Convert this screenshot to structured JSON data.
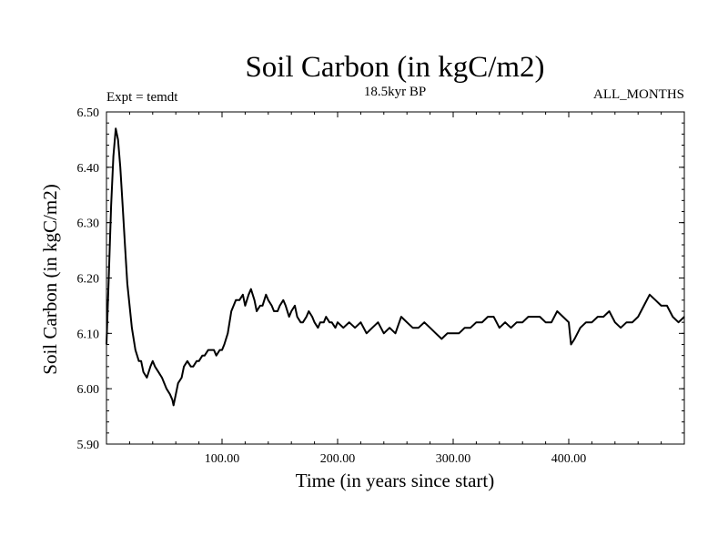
{
  "chart_data": {
    "type": "line",
    "title": "Soil Carbon (in kgC/m2)",
    "subtitle": "18.5kyr BP",
    "annotation_left": "Expt = temdt",
    "annotation_right": "ALL_MONTHS",
    "xlabel": "Time (in years since start)",
    "ylabel": "Soil Carbon (in kgC/m2)",
    "xlim": [
      0,
      500
    ],
    "ylim": [
      5.9,
      6.5
    ],
    "x_ticks": [
      100,
      200,
      300,
      400
    ],
    "x_tick_labels": [
      "100.00",
      "200.00",
      "300.00",
      "400.00"
    ],
    "y_ticks": [
      5.9,
      6.0,
      6.1,
      6.2,
      6.3,
      6.4,
      6.5
    ],
    "y_tick_labels": [
      "5.90",
      "6.00",
      "6.10",
      "6.20",
      "6.30",
      "6.40",
      "6.50"
    ],
    "grid": false,
    "series": [
      {
        "name": "Soil Carbon",
        "x": [
          0,
          2,
          4,
          6,
          8,
          10,
          12,
          14,
          16,
          18,
          20,
          22,
          25,
          28,
          30,
          32,
          35,
          38,
          40,
          42,
          45,
          48,
          50,
          52,
          55,
          57,
          58,
          60,
          62,
          65,
          67,
          70,
          73,
          75,
          78,
          80,
          83,
          85,
          88,
          90,
          93,
          95,
          98,
          100,
          102,
          105,
          108,
          110,
          112,
          115,
          118,
          120,
          123,
          125,
          128,
          130,
          133,
          135,
          138,
          140,
          143,
          145,
          148,
          150,
          153,
          155,
          158,
          160,
          163,
          165,
          168,
          170,
          173,
          175,
          178,
          180,
          183,
          185,
          188,
          190,
          193,
          195,
          198,
          200,
          205,
          210,
          215,
          220,
          225,
          230,
          235,
          240,
          245,
          250,
          255,
          260,
          265,
          270,
          275,
          280,
          285,
          290,
          295,
          300,
          305,
          310,
          315,
          320,
          325,
          330,
          335,
          340,
          345,
          350,
          355,
          360,
          365,
          370,
          375,
          380,
          385,
          390,
          395,
          400,
          402,
          405,
          410,
          415,
          420,
          425,
          430,
          435,
          440,
          445,
          450,
          455,
          460,
          465,
          470,
          475,
          480,
          485,
          490,
          495,
          500
        ],
        "values": [
          6.08,
          6.2,
          6.33,
          6.42,
          6.47,
          6.45,
          6.4,
          6.33,
          6.26,
          6.19,
          6.15,
          6.11,
          6.07,
          6.05,
          6.05,
          6.03,
          6.02,
          6.04,
          6.05,
          6.04,
          6.03,
          6.02,
          6.01,
          6.0,
          5.99,
          5.98,
          5.97,
          5.99,
          6.01,
          6.02,
          6.04,
          6.05,
          6.04,
          6.04,
          6.05,
          6.05,
          6.06,
          6.06,
          6.07,
          6.07,
          6.07,
          6.06,
          6.07,
          6.07,
          6.08,
          6.1,
          6.14,
          6.15,
          6.16,
          6.16,
          6.17,
          6.15,
          6.17,
          6.18,
          6.16,
          6.14,
          6.15,
          6.15,
          6.17,
          6.16,
          6.15,
          6.14,
          6.14,
          6.15,
          6.16,
          6.15,
          6.13,
          6.14,
          6.15,
          6.13,
          6.12,
          6.12,
          6.13,
          6.14,
          6.13,
          6.12,
          6.11,
          6.12,
          6.12,
          6.13,
          6.12,
          6.12,
          6.11,
          6.12,
          6.11,
          6.12,
          6.11,
          6.12,
          6.1,
          6.11,
          6.12,
          6.1,
          6.11,
          6.1,
          6.13,
          6.12,
          6.11,
          6.11,
          6.12,
          6.11,
          6.1,
          6.09,
          6.1,
          6.1,
          6.1,
          6.11,
          6.11,
          6.12,
          6.12,
          6.13,
          6.13,
          6.11,
          6.12,
          6.11,
          6.12,
          6.12,
          6.13,
          6.13,
          6.13,
          6.12,
          6.12,
          6.14,
          6.13,
          6.12,
          6.08,
          6.09,
          6.11,
          6.12,
          6.12,
          6.13,
          6.13,
          6.14,
          6.12,
          6.11,
          6.12,
          6.12,
          6.13,
          6.15,
          6.17,
          6.16,
          6.15,
          6.15,
          6.13,
          6.12,
          6.13
        ]
      }
    ]
  }
}
